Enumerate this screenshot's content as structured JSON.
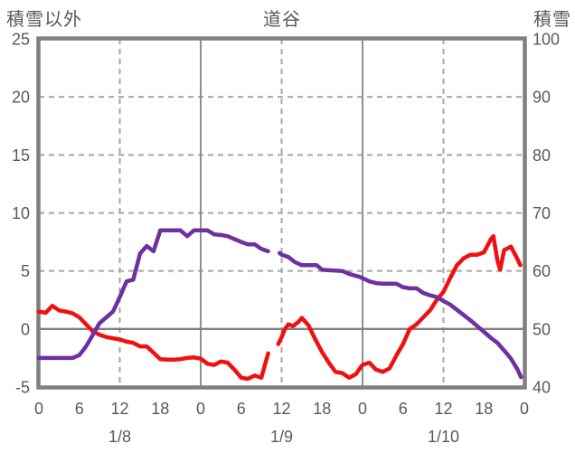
{
  "header": {
    "left_axis_title": "積雪以外",
    "chart_title": "道谷",
    "right_axis_title": "積雪"
  },
  "colors": {
    "series_red": "#f01010",
    "series_purple": "#7030a0",
    "grid_dashed": "#a6a6a6",
    "grid_solid": "#8f8f8f",
    "zero_line": "#808080",
    "frame": "#7f7f7f",
    "text": "#595959",
    "background": "#ffffff"
  },
  "chart_data": {
    "type": "line",
    "title": "道谷",
    "left_axis": {
      "label": "積雪以外",
      "min": -5,
      "max": 25,
      "ticks": [
        25,
        20,
        15,
        10,
        5,
        0,
        -5
      ]
    },
    "right_axis": {
      "label": "積雪",
      "min": 40,
      "max": 100,
      "ticks": [
        100,
        90,
        80,
        70,
        60,
        50,
        40
      ]
    },
    "x_axis": {
      "min_hours": 0,
      "max_hours": 72,
      "hour_tick_step": 6,
      "hour_tick_labels": [
        "0",
        "6",
        "12",
        "18",
        "0",
        "6",
        "12",
        "18",
        "0",
        "6",
        "12",
        "18",
        "0"
      ],
      "date_labels": [
        {
          "label": "1/8",
          "t": 12
        },
        {
          "label": "1/9",
          "t": 36
        },
        {
          "label": "1/10",
          "t": 60
        }
      ]
    },
    "grid": {
      "h_dashed_left_values": [
        20,
        15,
        10,
        5
      ],
      "h_solid_left_values": [
        0
      ],
      "v_solid_t": [
        24,
        48
      ],
      "v_dashed_t": [
        12,
        36,
        60
      ]
    },
    "legend": "none",
    "series": [
      {
        "name": "積雪以外",
        "axis": "left",
        "color_key": "series_red",
        "segments": [
          [
            [
              0,
              1.5
            ],
            [
              1,
              1.4
            ],
            [
              2,
              2.0
            ],
            [
              3,
              1.6
            ],
            [
              4,
              1.5
            ],
            [
              5,
              1.35
            ],
            [
              6,
              1.0
            ],
            [
              7,
              0.4
            ],
            [
              8,
              -0.2
            ],
            [
              9,
              -0.5
            ],
            [
              10,
              -0.7
            ],
            [
              11,
              -0.8
            ],
            [
              12,
              -0.9
            ],
            [
              13,
              -1.1
            ],
            [
              14,
              -1.2
            ],
            [
              15,
              -1.5
            ],
            [
              16,
              -1.5
            ],
            [
              17,
              -2.05
            ],
            [
              18,
              -2.6
            ],
            [
              19,
              -2.65
            ],
            [
              20,
              -2.65
            ],
            [
              21,
              -2.6
            ],
            [
              22,
              -2.5
            ],
            [
              23,
              -2.45
            ],
            [
              24,
              -2.55
            ],
            [
              25,
              -3.0
            ],
            [
              26,
              -3.1
            ],
            [
              27,
              -2.8
            ],
            [
              28,
              -2.9
            ],
            [
              29,
              -3.5
            ],
            [
              30,
              -4.2
            ],
            [
              31,
              -4.3
            ],
            [
              32,
              -4.0
            ],
            [
              33,
              -4.2
            ],
            [
              34,
              -2.1
            ]
          ],
          [
            [
              35.5,
              -1.3
            ],
            [
              36,
              -0.7
            ],
            [
              36.5,
              0.0
            ],
            [
              37,
              0.4
            ],
            [
              37.7,
              0.25
            ],
            [
              38.5,
              0.6
            ],
            [
              39,
              0.95
            ],
            [
              40,
              0.3
            ],
            [
              41,
              -0.9
            ],
            [
              42,
              -2.0
            ],
            [
              43,
              -2.9
            ],
            [
              44,
              -3.7
            ],
            [
              45,
              -3.8
            ],
            [
              46,
              -4.2
            ],
            [
              47,
              -3.9
            ],
            [
              48,
              -3.1
            ],
            [
              49,
              -2.9
            ],
            [
              50,
              -3.5
            ],
            [
              51,
              -3.7
            ],
            [
              52,
              -3.4
            ],
            [
              53,
              -2.3
            ],
            [
              54,
              -1.3
            ],
            [
              55,
              0.0
            ],
            [
              56,
              0.4
            ],
            [
              57,
              1.0
            ],
            [
              58,
              1.6
            ],
            [
              59,
              2.5
            ],
            [
              60,
              3.2
            ],
            [
              61,
              4.4
            ],
            [
              62,
              5.5
            ],
            [
              63,
              6.1
            ],
            [
              64,
              6.4
            ],
            [
              65,
              6.4
            ],
            [
              66,
              6.6
            ],
            [
              67,
              7.7
            ],
            [
              67.4,
              8.0
            ],
            [
              68,
              5.9
            ],
            [
              68.4,
              5.1
            ],
            [
              69,
              6.8
            ],
            [
              70,
              7.1
            ],
            [
              71,
              6.0
            ],
            [
              71.4,
              5.5
            ]
          ]
        ]
      },
      {
        "name": "積雪",
        "axis": "right",
        "color_key": "series_purple",
        "segments": [
          [
            [
              0,
              45
            ],
            [
              5,
              45
            ],
            [
              6,
              45.5
            ],
            [
              7,
              47
            ],
            [
              8,
              49
            ],
            [
              9,
              51
            ],
            [
              10,
              52
            ],
            [
              11,
              53
            ],
            [
              12,
              55.5
            ],
            [
              13,
              58.2
            ],
            [
              14,
              58.5
            ],
            [
              15,
              63
            ],
            [
              16,
              64.3
            ],
            [
              17,
              63.4
            ],
            [
              18,
              67
            ],
            [
              21,
              67
            ],
            [
              22,
              66
            ],
            [
              23,
              67
            ],
            [
              25,
              67
            ],
            [
              26,
              66.3
            ],
            [
              27,
              66.2
            ],
            [
              28,
              66
            ],
            [
              29,
              65.5
            ],
            [
              30,
              65
            ],
            [
              31,
              64.6
            ],
            [
              32,
              64.6
            ],
            [
              33,
              63.8
            ],
            [
              34,
              63.4
            ]
          ],
          [
            [
              35.7,
              63.1
            ],
            [
              36,
              62.8
            ],
            [
              37,
              62.4
            ],
            [
              38,
              61.5
            ],
            [
              39,
              61
            ],
            [
              41.2,
              61
            ],
            [
              42,
              60.2
            ],
            [
              45,
              60
            ],
            [
              46,
              59.5
            ],
            [
              47.5,
              59
            ],
            [
              48.5,
              58.5
            ],
            [
              49,
              58.2
            ],
            [
              50,
              57.9
            ],
            [
              51,
              57.8
            ],
            [
              53,
              57.8
            ],
            [
              54,
              57.2
            ],
            [
              55,
              57
            ],
            [
              56,
              57
            ],
            [
              57,
              56.2
            ],
            [
              58,
              55.8
            ],
            [
              59,
              55.5
            ],
            [
              60,
              54.8
            ],
            [
              61,
              54.2
            ],
            [
              62,
              53.3
            ],
            [
              63,
              52.4
            ],
            [
              64,
              51.5
            ],
            [
              65,
              50.5
            ],
            [
              66,
              49.5
            ],
            [
              67,
              48.5
            ],
            [
              68,
              47.6
            ],
            [
              69,
              46.3
            ],
            [
              70,
              44.9
            ],
            [
              71,
              43
            ],
            [
              71.5,
              41.7
            ]
          ]
        ]
      }
    ]
  }
}
